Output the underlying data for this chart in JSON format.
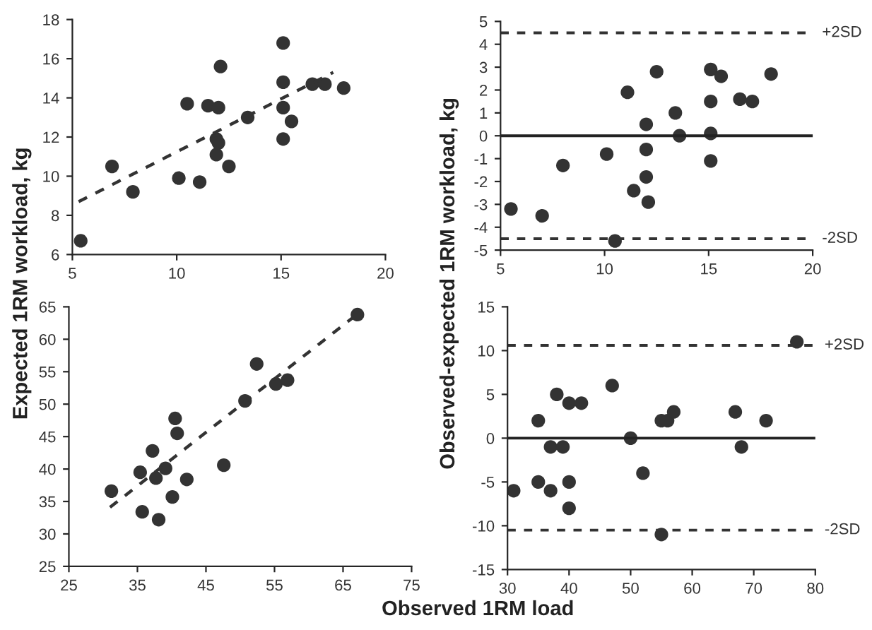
{
  "chart_data": [
    {
      "type": "scatter",
      "ylabel": "Expected 1RM workload, kg",
      "xlim": [
        5,
        20
      ],
      "xticks": [
        5,
        10,
        15,
        20
      ],
      "ylim": [
        6,
        18
      ],
      "yticks": [
        6,
        8,
        10,
        12,
        14,
        16,
        18
      ],
      "series": [
        {
          "color": "#333333",
          "marker": "circle",
          "x": [
            5.4,
            6.9,
            7.9,
            10.1,
            10.5,
            11.1,
            11.5,
            12.0,
            12.1,
            11.9,
            12.0,
            11.9,
            12.5,
            13.4,
            15.1,
            15.1,
            15.1,
            15.5,
            15.1,
            16.5,
            17.1,
            18.0
          ],
          "values": [
            6.7,
            10.5,
            9.2,
            9.9,
            13.7,
            9.7,
            13.6,
            13.5,
            15.6,
            11.9,
            11.7,
            11.1,
            10.5,
            13.0,
            16.8,
            14.8,
            13.5,
            12.8,
            11.9,
            14.7,
            14.7,
            14.5
          ]
        },
        {
          "type": "line",
          "marker": "none",
          "line_style": "dashed",
          "color": "#333333",
          "x": [
            5.3,
            17.5
          ],
          "values": [
            8.7,
            15.3
          ]
        }
      ]
    },
    {
      "type": "scatter",
      "ylabel": "Observed-expected 1RM workload, kg",
      "xlim": [
        5,
        20
      ],
      "xticks": [
        5,
        10,
        15,
        20
      ],
      "ylim": [
        -5,
        5
      ],
      "yticks": [
        -5,
        -4,
        -3,
        -2,
        -1,
        0,
        1,
        2,
        3,
        4,
        5
      ],
      "series": [
        {
          "color": "#333333",
          "marker": "circle",
          "x": [
            5.5,
            7.0,
            8.0,
            10.1,
            10.5,
            11.1,
            11.4,
            12.0,
            12.0,
            12.0,
            12.1,
            12.5,
            13.4,
            13.6,
            15.1,
            15.6,
            15.1,
            15.1,
            15.1,
            16.5,
            17.1,
            18.0
          ],
          "values": [
            -3.2,
            -3.5,
            -1.3,
            -0.8,
            -4.6,
            1.9,
            -2.4,
            0.5,
            -0.6,
            -1.8,
            -2.9,
            2.8,
            1.0,
            0.0,
            2.9,
            2.6,
            1.5,
            0.1,
            -1.1,
            1.6,
            1.5,
            2.7
          ]
        }
      ],
      "ref_lines": [
        {
          "axis": "y",
          "value": 4.5,
          "label": "+2SD",
          "line_style": "dashed",
          "color": "#333333"
        },
        {
          "axis": "y",
          "value": 0,
          "label": null,
          "line_style": "solid",
          "color": "#222222"
        },
        {
          "axis": "y",
          "value": -4.5,
          "label": "-2SD",
          "line_style": "dashed",
          "color": "#333333"
        }
      ]
    },
    {
      "type": "scatter",
      "xlabel": "Observed 1RM load",
      "xlim": [
        25,
        75
      ],
      "xticks": [
        25,
        35,
        45,
        55,
        65,
        75
      ],
      "ylim": [
        25,
        65
      ],
      "yticks": [
        25,
        30,
        35,
        40,
        45,
        50,
        55,
        60,
        65
      ],
      "series": [
        {
          "color": "#333333",
          "marker": "circle",
          "x": [
            31.2,
            35.4,
            35.7,
            37.2,
            37.7,
            39.1,
            38.1,
            42.2,
            40.1,
            40.5,
            40.8,
            47.6,
            50.7,
            52.4,
            55.2,
            56.9,
            67.1
          ],
          "values": [
            36.6,
            39.5,
            33.4,
            42.8,
            38.6,
            40.1,
            32.2,
            38.4,
            35.7,
            47.8,
            45.5,
            40.6,
            50.5,
            56.2,
            53.1,
            53.7,
            63.8
          ]
        },
        {
          "type": "line",
          "marker": "none",
          "line_style": "dashed",
          "color": "#333333",
          "x": [
            31.0,
            66.4
          ],
          "values": [
            34.1,
            63.3
          ]
        }
      ]
    },
    {
      "type": "scatter",
      "xlim": [
        30,
        80
      ],
      "xticks": [
        30,
        40,
        50,
        60,
        70,
        80
      ],
      "ylim": [
        -15,
        15
      ],
      "yticks": [
        -15,
        -10,
        -5,
        0,
        5,
        10,
        15
      ],
      "series": [
        {
          "color": "#333333",
          "marker": "circle",
          "x": [
            31,
            35,
            35,
            37,
            38,
            37,
            39,
            40,
            40,
            42,
            40,
            47,
            50,
            52,
            55,
            55,
            56,
            57,
            67,
            68,
            72,
            77
          ],
          "values": [
            -6,
            2,
            -5,
            -6,
            5,
            -1,
            -1,
            4,
            -5,
            4,
            -8,
            6,
            0,
            -4,
            -11,
            2,
            2,
            3,
            3,
            -1,
            2,
            11
          ]
        }
      ],
      "ref_lines": [
        {
          "axis": "y",
          "value": 10.6,
          "label": "+2SD",
          "line_style": "dashed",
          "color": "#333333"
        },
        {
          "axis": "y",
          "value": 0,
          "label": null,
          "line_style": "solid",
          "color": "#222222"
        },
        {
          "axis": "y",
          "value": -10.5,
          "label": "-2SD",
          "line_style": "dashed",
          "color": "#333333"
        }
      ]
    }
  ]
}
